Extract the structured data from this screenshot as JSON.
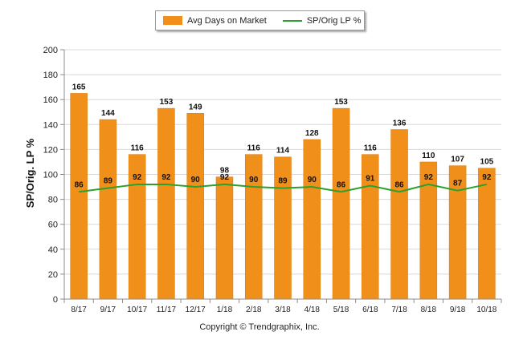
{
  "legend": {
    "bar_label": "Avg Days on Market",
    "line_label": "SP/Orig LP %"
  },
  "footer": {
    "copyright": "Copyright © Trendgraphix, Inc."
  },
  "colors": {
    "bar": "#f0901a",
    "bar_edge": "#d97a0c",
    "line": "#2ca02c",
    "grid": "#d8d8d8",
    "axis": "#8c8c8c"
  },
  "chart_data": {
    "type": "bar",
    "categories": [
      "8/17",
      "9/17",
      "10/17",
      "11/17",
      "12/17",
      "1/18",
      "2/18",
      "3/18",
      "4/18",
      "5/18",
      "6/18",
      "7/18",
      "8/18",
      "9/18",
      "10/18"
    ],
    "ylabel": "SP/Orig. LP %",
    "ylim": [
      0,
      200
    ],
    "yticks": [
      0,
      20,
      40,
      60,
      80,
      100,
      120,
      140,
      160,
      180,
      200
    ],
    "grid": true,
    "legend_position": "top-center",
    "series": [
      {
        "name": "Avg Days on Market",
        "type": "bar",
        "values": [
          165,
          144,
          116,
          153,
          149,
          98,
          116,
          114,
          128,
          153,
          116,
          136,
          110,
          107,
          105
        ]
      },
      {
        "name": "SP/Orig LP %",
        "type": "line",
        "values": [
          86,
          89,
          92,
          92,
          90,
          92,
          90,
          89,
          90,
          86,
          91,
          86,
          92,
          87,
          92
        ]
      }
    ]
  }
}
